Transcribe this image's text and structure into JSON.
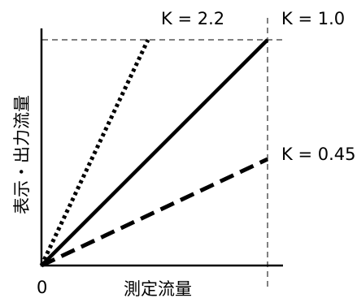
{
  "diagram": {
    "origin_label": "0",
    "x_axis_label": "測定流量",
    "y_axis_label": "表示・出力流量",
    "lines": [
      {
        "k_label": "K = 2.2",
        "k": 2.2,
        "style": "dotted"
      },
      {
        "k_label": "K = 1.0",
        "k": 1.0,
        "style": "solid"
      },
      {
        "k_label": "K = 0.45",
        "k": 0.45,
        "style": "dashed"
      }
    ],
    "reference_guides": "dashed",
    "line_color": "#000000"
  }
}
